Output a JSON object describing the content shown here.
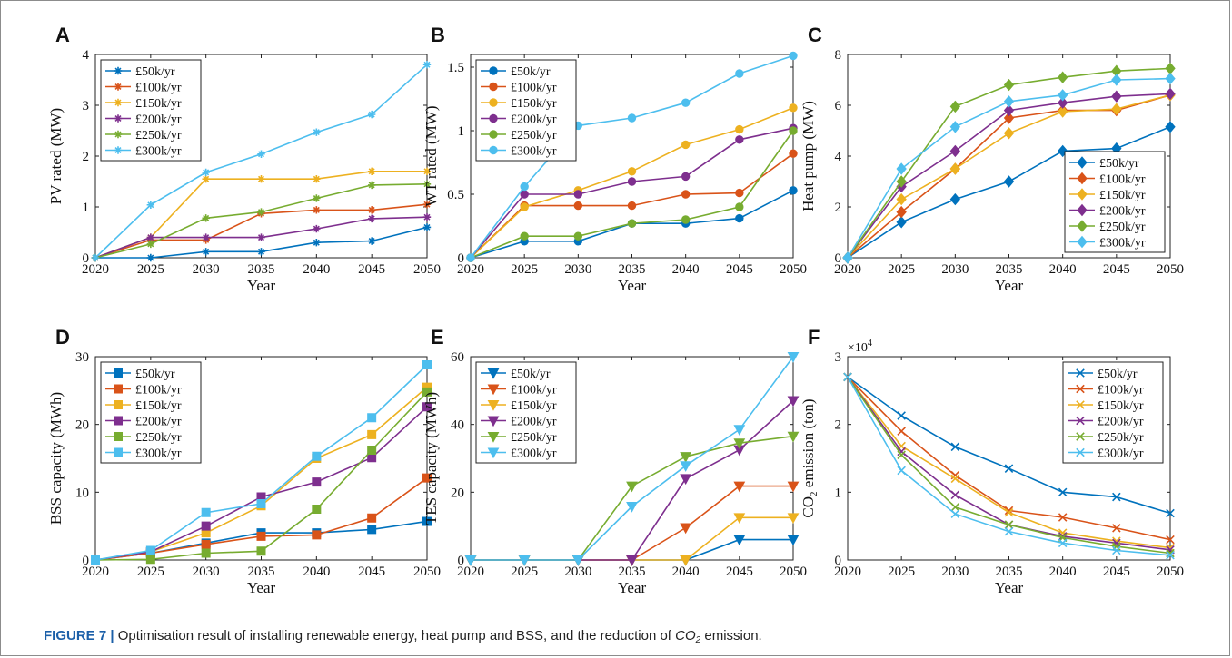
{
  "figure": {
    "caption_label": "FIGURE 7 |",
    "caption_pre": " Optimisation result of installing renewable energy, heat pump and BSS, and the reduction of ",
    "caption_co": "CO",
    "caption_sub": "2",
    "caption_post": " emission."
  },
  "chart_data": [
    {
      "panel": "A",
      "type": "line",
      "marker": "star",
      "ylabel": "PV rated (MW)",
      "xlabel": "Year",
      "x": [
        2020,
        2025,
        2030,
        2035,
        2040,
        2045,
        2050
      ],
      "xticks": [
        "2020",
        "2025",
        "2030",
        "2035",
        "2040",
        "2045",
        "2050"
      ],
      "ylim": [
        0,
        4
      ],
      "yticks": [
        "0",
        "1",
        "2",
        "3",
        "4"
      ],
      "legend": "top-left",
      "series": [
        {
          "name": "£50k/yr",
          "color": "#0072bd",
          "values": [
            0,
            0,
            0.12,
            0.12,
            0.3,
            0.33,
            0.6
          ]
        },
        {
          "name": "£100k/yr",
          "color": "#d95319",
          "values": [
            0,
            0.35,
            0.35,
            0.87,
            0.94,
            0.94,
            1.05
          ]
        },
        {
          "name": "£150k/yr",
          "color": "#edb120",
          "values": [
            0,
            0.4,
            1.55,
            1.55,
            1.55,
            1.7,
            1.7
          ]
        },
        {
          "name": "£200k/yr",
          "color": "#7e2f8e",
          "values": [
            0,
            0.4,
            0.4,
            0.4,
            0.57,
            0.77,
            0.8
          ]
        },
        {
          "name": "£250k/yr",
          "color": "#77ac30",
          "values": [
            0,
            0.27,
            0.78,
            0.9,
            1.17,
            1.43,
            1.45
          ]
        },
        {
          "name": "£300k/yr",
          "color": "#4dbeee",
          "values": [
            0,
            1.04,
            1.68,
            2.04,
            2.47,
            2.82,
            3.8
          ]
        }
      ]
    },
    {
      "panel": "B",
      "type": "line",
      "marker": "circle",
      "ylabel": "WT rated (MW)",
      "xlabel": "Year",
      "x": [
        2020,
        2025,
        2030,
        2035,
        2040,
        2045,
        2050
      ],
      "xticks": [
        "2020",
        "2025",
        "2030",
        "2035",
        "2040",
        "2045",
        "2050"
      ],
      "ylim": [
        0,
        1.6
      ],
      "yticks": [
        "0",
        "0.5",
        "1",
        "1.5"
      ],
      "legend": "top-left",
      "series": [
        {
          "name": "£50k/yr",
          "color": "#0072bd",
          "values": [
            0,
            0.13,
            0.13,
            0.27,
            0.27,
            0.31,
            0.53
          ]
        },
        {
          "name": "£100k/yr",
          "color": "#d95319",
          "values": [
            0,
            0.41,
            0.41,
            0.41,
            0.5,
            0.51,
            0.82
          ]
        },
        {
          "name": "£150k/yr",
          "color": "#edb120",
          "values": [
            0,
            0.4,
            0.53,
            0.68,
            0.89,
            1.01,
            1.18
          ]
        },
        {
          "name": "£200k/yr",
          "color": "#7e2f8e",
          "values": [
            0,
            0.5,
            0.5,
            0.6,
            0.64,
            0.93,
            1.02
          ]
        },
        {
          "name": "£250k/yr",
          "color": "#77ac30",
          "values": [
            0,
            0.17,
            0.17,
            0.27,
            0.3,
            0.4,
            1.0
          ]
        },
        {
          "name": "£300k/yr",
          "color": "#4dbeee",
          "values": [
            0,
            0.56,
            1.04,
            1.1,
            1.22,
            1.45,
            1.59
          ]
        }
      ]
    },
    {
      "panel": "C",
      "type": "line",
      "marker": "diamond",
      "ylabel": "Heat pump (MW)",
      "xlabel": "Year",
      "x": [
        2020,
        2025,
        2030,
        2035,
        2040,
        2045,
        2050
      ],
      "xticks": [
        "2020",
        "2025",
        "2030",
        "2035",
        "2040",
        "2045",
        "2050"
      ],
      "ylim": [
        0,
        8
      ],
      "yticks": [
        "0",
        "2",
        "4",
        "6",
        "8"
      ],
      "legend": "bottom-right",
      "series": [
        {
          "name": "£50k/yr",
          "color": "#0072bd",
          "values": [
            0,
            1.4,
            2.3,
            3.0,
            4.2,
            4.3,
            5.15
          ]
        },
        {
          "name": "£100k/yr",
          "color": "#d95319",
          "values": [
            0,
            1.8,
            3.5,
            5.5,
            5.8,
            5.8,
            6.4
          ]
        },
        {
          "name": "£150k/yr",
          "color": "#edb120",
          "values": [
            0,
            2.3,
            3.5,
            4.9,
            5.75,
            5.85,
            6.4
          ]
        },
        {
          "name": "£200k/yr",
          "color": "#7e2f8e",
          "values": [
            0,
            2.8,
            4.2,
            5.8,
            6.1,
            6.35,
            6.45
          ]
        },
        {
          "name": "£250k/yr",
          "color": "#77ac30",
          "values": [
            0,
            3.0,
            5.95,
            6.8,
            7.1,
            7.35,
            7.45
          ]
        },
        {
          "name": "£300k/yr",
          "color": "#4dbeee",
          "values": [
            0,
            3.5,
            5.15,
            6.15,
            6.4,
            7.0,
            7.05
          ]
        }
      ]
    },
    {
      "panel": "D",
      "type": "line",
      "marker": "square",
      "ylabel": "BSS capacity (MWh)",
      "xlabel": "Year",
      "x": [
        2020,
        2025,
        2030,
        2035,
        2040,
        2045,
        2050
      ],
      "xticks": [
        "2020",
        "2025",
        "2030",
        "2035",
        "2040",
        "2045",
        "2050"
      ],
      "ylim": [
        0,
        30
      ],
      "yticks": [
        "0",
        "10",
        "20",
        "30"
      ],
      "legend": "top-left",
      "series": [
        {
          "name": "£50k/yr",
          "color": "#0072bd",
          "values": [
            0,
            1.0,
            2.5,
            4.0,
            4.0,
            4.5,
            5.7
          ]
        },
        {
          "name": "£100k/yr",
          "color": "#d95319",
          "values": [
            0,
            1.0,
            2.3,
            3.5,
            3.7,
            6.2,
            12.1
          ]
        },
        {
          "name": "£150k/yr",
          "color": "#edb120",
          "values": [
            0,
            1.2,
            4.0,
            8.0,
            15.0,
            18.5,
            25.5
          ]
        },
        {
          "name": "£200k/yr",
          "color": "#7e2f8e",
          "values": [
            0,
            1.2,
            5.0,
            9.3,
            11.5,
            15.1,
            22.6
          ]
        },
        {
          "name": "£250k/yr",
          "color": "#77ac30",
          "values": [
            0,
            0.1,
            1.0,
            1.3,
            7.5,
            16.2,
            24.8
          ]
        },
        {
          "name": "£300k/yr",
          "color": "#4dbeee",
          "values": [
            0,
            1.4,
            7.0,
            8.3,
            15.3,
            21.0,
            28.8
          ]
        }
      ]
    },
    {
      "panel": "E",
      "type": "line",
      "marker": "triangle-down",
      "ylabel": "TES capacity (MWh)",
      "xlabel": "Year",
      "x": [
        2020,
        2025,
        2030,
        2035,
        2040,
        2045,
        2050
      ],
      "xticks": [
        "2020",
        "2025",
        "2030",
        "2035",
        "2040",
        "2045",
        "2050"
      ],
      "ylim": [
        0,
        60
      ],
      "yticks": [
        "0",
        "20",
        "40",
        "60"
      ],
      "legend": "top-left",
      "series": [
        {
          "name": "£50k/yr",
          "color": "#0072bd",
          "values": [
            0,
            0,
            0,
            0,
            0,
            6.0,
            6.0
          ]
        },
        {
          "name": "£100k/yr",
          "color": "#d95319",
          "values": [
            0,
            0,
            0,
            0,
            9.5,
            21.8,
            21.8
          ]
        },
        {
          "name": "£150k/yr",
          "color": "#edb120",
          "values": [
            0,
            0,
            0,
            0,
            0,
            12.5,
            12.5
          ]
        },
        {
          "name": "£200k/yr",
          "color": "#7e2f8e",
          "values": [
            0,
            0,
            0,
            0,
            24.0,
            32.5,
            47.0
          ]
        },
        {
          "name": "£250k/yr",
          "color": "#77ac30",
          "values": [
            0,
            0,
            0,
            21.8,
            30.5,
            34.5,
            36.5
          ]
        },
        {
          "name": "£300k/yr",
          "color": "#4dbeee",
          "values": [
            0,
            0,
            0,
            15.8,
            27.8,
            38.5,
            60.0
          ]
        }
      ]
    },
    {
      "panel": "F",
      "type": "line",
      "marker": "x",
      "ylabel": "CO",
      "ylabel_sub": "2",
      "ylabel_post": " emission (ton)",
      "xlabel": "Year",
      "yexponent": "×10",
      "yexponent_power": "4",
      "x": [
        2020,
        2025,
        2030,
        2035,
        2040,
        2045,
        2050
      ],
      "xticks": [
        "2020",
        "2025",
        "2030",
        "2035",
        "2040",
        "2045",
        "2050"
      ],
      "ylim": [
        0,
        3
      ],
      "yticks": [
        "0",
        "1",
        "2",
        "3"
      ],
      "legend": "top-right",
      "series": [
        {
          "name": "£50k/yr",
          "color": "#0072bd",
          "values": [
            2.7,
            2.13,
            1.67,
            1.35,
            1.0,
            0.93,
            0.69
          ]
        },
        {
          "name": "£100k/yr",
          "color": "#d95319",
          "values": [
            2.7,
            1.9,
            1.25,
            0.73,
            0.63,
            0.47,
            0.3
          ]
        },
        {
          "name": "£150k/yr",
          "color": "#edb120",
          "values": [
            2.7,
            1.68,
            1.2,
            0.7,
            0.4,
            0.28,
            0.18
          ]
        },
        {
          "name": "£200k/yr",
          "color": "#7e2f8e",
          "values": [
            2.7,
            1.6,
            0.96,
            0.52,
            0.35,
            0.25,
            0.15
          ]
        },
        {
          "name": "£250k/yr",
          "color": "#77ac30",
          "values": [
            2.7,
            1.55,
            0.78,
            0.52,
            0.33,
            0.2,
            0.1
          ]
        },
        {
          "name": "£300k/yr",
          "color": "#4dbeee",
          "values": [
            2.7,
            1.32,
            0.68,
            0.42,
            0.25,
            0.14,
            0.07
          ]
        }
      ]
    }
  ]
}
